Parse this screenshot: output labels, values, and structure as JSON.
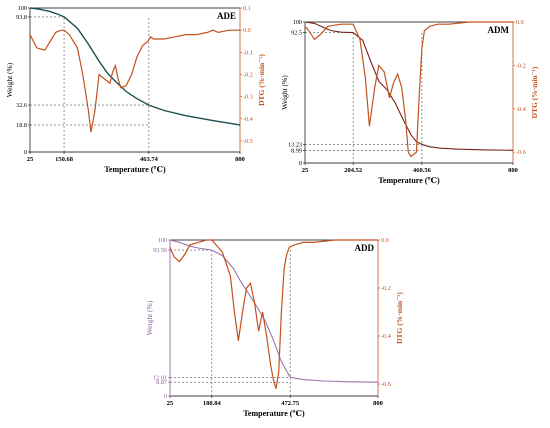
{
  "colors": {
    "adm_weight": "#7a2420",
    "dtg": "#c2521e",
    "dtg_axis": "#c2521e",
    "ade_weight": "#1f5050",
    "add_weight": "#9d75ab",
    "add_weight_ticks": "#8a5e9c",
    "guide": "#555555",
    "axis": "#000000"
  },
  "chart_data": [
    {
      "id": "ADE",
      "type": "line",
      "title": "ADE",
      "xlabel": "Temperature (℃)",
      "ylabel_left": "Weight (%)",
      "ylabel_right": "DTG (%·min⁻¹)",
      "xlim": [
        25,
        800
      ],
      "ylim_left": [
        0,
        100
      ],
      "ylim_right": [
        -0.55,
        0.1
      ],
      "x_ticks": [
        25,
        150.68,
        463.74,
        800
      ],
      "y_ticks_left": [
        0,
        18.8,
        32.6,
        93.8,
        100
      ],
      "y_ticks_right": [
        0.1,
        0.0,
        -0.1,
        -0.2,
        -0.3,
        -0.4,
        -0.5
      ],
      "right_tick_labels": [
        "0.1",
        "0.0",
        "-0.1",
        "-0.2",
        "-0.3",
        "-0.4",
        "-0.5"
      ],
      "series": [
        {
          "axis": "left",
          "x": [
            25,
            60,
            100,
            130,
            150.68,
            200,
            240,
            280,
            310,
            340,
            380,
            420,
            463.74,
            520,
            600,
            700,
            800
          ],
          "y": [
            100,
            99.2,
            97.5,
            95.5,
            93.8,
            86,
            75,
            63,
            55,
            49,
            42,
            37,
            32.6,
            28.8,
            25.2,
            21.8,
            18.8
          ]
        },
        {
          "axis": "right",
          "x": [
            25,
            50,
            80,
            100,
            120,
            140,
            150.68,
            170,
            200,
            220,
            240,
            250,
            265,
            280,
            300,
            320,
            330,
            340,
            350,
            360,
            380,
            400,
            420,
            440,
            460,
            470,
            480,
            520,
            560,
            600,
            640,
            680,
            700,
            720,
            760,
            800
          ],
          "y": [
            -0.02,
            -0.08,
            -0.09,
            -0.05,
            -0.01,
            0.0,
            0.0,
            -0.02,
            -0.08,
            -0.2,
            -0.36,
            -0.46,
            -0.36,
            -0.2,
            -0.22,
            -0.24,
            -0.19,
            -0.16,
            -0.22,
            -0.26,
            -0.25,
            -0.2,
            -0.12,
            -0.07,
            -0.05,
            -0.03,
            -0.04,
            -0.04,
            -0.03,
            -0.02,
            -0.02,
            -0.01,
            0.0,
            -0.01,
            0.0,
            0.0
          ]
        }
      ]
    },
    {
      "id": "ADM",
      "type": "line",
      "title": "ADM",
      "xlabel": "Temperature (℃)",
      "ylabel_left": "Weight (%)",
      "ylabel_right": "DTG (%·min⁻¹)",
      "xlim": [
        25,
        800
      ],
      "ylim_left": [
        0,
        100
      ],
      "ylim_right": [
        -0.65,
        0.0
      ],
      "x_ticks": [
        25,
        204.52,
        460.56,
        800
      ],
      "y_ticks_left": [
        0,
        8.99,
        13.23,
        92.5,
        100
      ],
      "y_ticks_right": [
        0.0,
        -0.2,
        -0.4,
        -0.6
      ],
      "right_tick_labels": [
        "0.0",
        "-0.2",
        "-0.4",
        "-0.6"
      ],
      "series": [
        {
          "axis": "left",
          "x": [
            25,
            60,
            90,
            120,
            160,
            204.52,
            240,
            270,
            300,
            330,
            360,
            390,
            420,
            440,
            460.56,
            490,
            530,
            600,
            700,
            800
          ],
          "y": [
            100,
            99,
            96.5,
            94,
            92.8,
            92.5,
            87,
            72,
            58,
            52,
            43,
            31,
            20,
            15,
            13.23,
            11.5,
            10.5,
            9.8,
            9.3,
            8.99
          ]
        },
        {
          "axis": "right",
          "x": [
            25,
            45,
            60,
            80,
            110,
            160,
            204.52,
            230,
            250,
            265,
            285,
            300,
            320,
            340,
            355,
            370,
            385,
            400,
            410,
            420,
            440,
            450,
            460.56,
            470,
            490,
            520,
            560,
            640,
            720,
            800
          ],
          "y": [
            -0.02,
            -0.05,
            -0.08,
            -0.06,
            -0.02,
            -0.01,
            -0.01,
            -0.08,
            -0.26,
            -0.48,
            -0.3,
            -0.2,
            -0.23,
            -0.35,
            -0.28,
            -0.24,
            -0.3,
            -0.45,
            -0.6,
            -0.62,
            -0.6,
            -0.35,
            -0.12,
            -0.04,
            -0.02,
            -0.01,
            -0.01,
            0.0,
            0.0,
            0.0
          ]
        }
      ]
    },
    {
      "id": "ADD",
      "type": "line",
      "title": "ADD",
      "xlabel": "Temperature (℃)",
      "ylabel_left": "Weight (%)",
      "ylabel_right": "DTG (%·min⁻¹)",
      "xlim": [
        25,
        800
      ],
      "ylim_left": [
        0,
        100
      ],
      "ylim_right": [
        -0.65,
        0.0
      ],
      "x_ticks": [
        25,
        180.84,
        472.75,
        800
      ],
      "y_ticks_left": [
        0,
        8.87,
        12.01,
        93.56,
        100
      ],
      "y_ticks_right": [
        0.0,
        -0.2,
        -0.4,
        -0.6
      ],
      "right_tick_labels": [
        "0.0",
        "-0.2",
        "-0.4",
        "-0.6"
      ],
      "series": [
        {
          "axis": "left",
          "x": [
            25,
            60,
            100,
            140,
            180.84,
            220,
            260,
            290,
            320,
            350,
            380,
            410,
            440,
            472.75,
            520,
            600,
            700,
            800
          ],
          "y": [
            100,
            98.5,
            96,
            94.5,
            93.56,
            90,
            82,
            73,
            65,
            57,
            48,
            36,
            22,
            12.01,
            10.5,
            9.6,
            9.1,
            8.87
          ]
        },
        {
          "axis": "right",
          "x": [
            25,
            40,
            60,
            80,
            100,
            130,
            160,
            180.84,
            220,
            250,
            265,
            280,
            295,
            310,
            325,
            340,
            355,
            370,
            385,
            400,
            410,
            420,
            430,
            440,
            450,
            460,
            470,
            490,
            520,
            560,
            640,
            720,
            800
          ],
          "y": [
            -0.03,
            -0.07,
            -0.09,
            -0.06,
            -0.02,
            -0.01,
            0.0,
            0.0,
            -0.05,
            -0.15,
            -0.3,
            -0.42,
            -0.3,
            -0.2,
            -0.18,
            -0.26,
            -0.38,
            -0.3,
            -0.4,
            -0.52,
            -0.58,
            -0.62,
            -0.55,
            -0.3,
            -0.12,
            -0.06,
            -0.03,
            -0.02,
            -0.01,
            -0.01,
            0.0,
            0.0,
            0.0
          ]
        }
      ]
    }
  ]
}
